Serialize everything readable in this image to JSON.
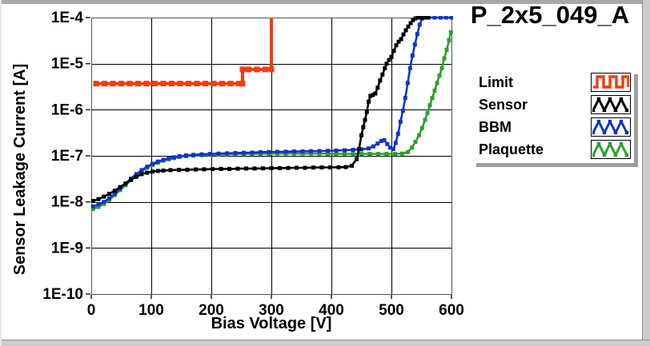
{
  "title": "P_2x5_049_A",
  "chart_data": {
    "type": "line",
    "title": "P_2x5_049_A",
    "xlabel": "Bias Voltage [V]",
    "ylabel": "Sensor Leakage Current [A]",
    "x_scale": "linear",
    "y_scale": "log",
    "xlim": [
      0,
      600
    ],
    "ylim": [
      1e-10,
      0.0001
    ],
    "grid": true,
    "legend_position": "right",
    "x_ticks": [
      0,
      100,
      200,
      300,
      400,
      500,
      600
    ],
    "x_tick_labels": [
      "0",
      "100",
      "200",
      "300",
      "400",
      "500",
      "600"
    ],
    "y_tick_labels": [
      "1E-4",
      "1E-5",
      "1E-6",
      "1E-7",
      "1E-8",
      "1E-9",
      "1E-10"
    ],
    "series": [
      {
        "name": "Limit",
        "color": "#f23c0e",
        "icon": "square-wave",
        "marker": "square",
        "marker_size": 7,
        "line_width": 4,
        "points": [
          [
            8,
            3.7e-06
          ],
          [
            22,
            3.7e-06
          ],
          [
            36,
            3.7e-06
          ],
          [
            50,
            3.7e-06
          ],
          [
            64,
            3.7e-06
          ],
          [
            78,
            3.7e-06
          ],
          [
            92,
            3.7e-06
          ],
          [
            106,
            3.7e-06
          ],
          [
            120,
            3.7e-06
          ],
          [
            134,
            3.7e-06
          ],
          [
            148,
            3.7e-06
          ],
          [
            162,
            3.7e-06
          ],
          [
            176,
            3.7e-06
          ],
          [
            190,
            3.7e-06
          ],
          [
            204,
            3.7e-06
          ],
          [
            218,
            3.7e-06
          ],
          [
            232,
            3.7e-06
          ],
          [
            246,
            3.7e-06
          ],
          [
            252,
            3.7e-06
          ],
          [
            252,
            7.5e-06
          ],
          [
            262,
            7.5e-06
          ],
          [
            276,
            7.5e-06
          ],
          [
            290,
            7.5e-06
          ],
          [
            300,
            7.5e-06
          ],
          [
            300,
            0.0001
          ]
        ]
      },
      {
        "name": "Sensor",
        "color": "#000000",
        "icon": "triangle-wave",
        "marker": "square",
        "marker_size": 5,
        "line_width": 2.6,
        "points": [
          [
            3,
            1.05e-08
          ],
          [
            12,
            1.15e-08
          ],
          [
            21,
            1.3e-08
          ],
          [
            30,
            1.5e-08
          ],
          [
            39,
            1.75e-08
          ],
          [
            48,
            2.1e-08
          ],
          [
            57,
            2.5e-08
          ],
          [
            66,
            3e-08
          ],
          [
            75,
            3.5e-08
          ],
          [
            84,
            4e-08
          ],
          [
            93,
            4.3e-08
          ],
          [
            102,
            4.55e-08
          ],
          [
            111,
            4.7e-08
          ],
          [
            120,
            4.8e-08
          ],
          [
            132,
            4.9e-08
          ],
          [
            146,
            4.95e-08
          ],
          [
            160,
            5e-08
          ],
          [
            174,
            5.05e-08
          ],
          [
            188,
            5.1e-08
          ],
          [
            202,
            5.15e-08
          ],
          [
            216,
            5.2e-08
          ],
          [
            230,
            5.2e-08
          ],
          [
            244,
            5.25e-08
          ],
          [
            258,
            5.3e-08
          ],
          [
            272,
            5.3e-08
          ],
          [
            286,
            5.35e-08
          ],
          [
            300,
            5.4e-08
          ],
          [
            314,
            5.4e-08
          ],
          [
            328,
            5.45e-08
          ],
          [
            342,
            5.5e-08
          ],
          [
            356,
            5.5e-08
          ],
          [
            370,
            5.55e-08
          ],
          [
            384,
            5.6e-08
          ],
          [
            398,
            5.6e-08
          ],
          [
            412,
            5.65e-08
          ],
          [
            424,
            5.7e-08
          ],
          [
            434,
            6.1e-08
          ],
          [
            442,
            8.5e-08
          ],
          [
            446,
            1.4e-07
          ],
          [
            450,
            2.8e-07
          ],
          [
            453,
            4.2e-07
          ],
          [
            456,
            6e-07
          ],
          [
            459,
            9e-07
          ],
          [
            462,
            1.5e-06
          ],
          [
            465,
            2e-06
          ],
          [
            469,
            2.1e-06
          ],
          [
            473,
            2.25e-06
          ],
          [
            477,
            3e-06
          ],
          [
            481,
            4.3e-06
          ],
          [
            485,
            5.8e-06
          ],
          [
            489,
            8e-06
          ],
          [
            492,
            1e-05
          ],
          [
            496,
            1.2e-05
          ],
          [
            500,
            1.4e-05
          ],
          [
            504,
            1.9e-05
          ],
          [
            508,
            2.5e-05
          ],
          [
            512,
            3e-05
          ],
          [
            516,
            3.4e-05
          ],
          [
            520,
            4.3e-05
          ],
          [
            524,
            5.3e-05
          ],
          [
            528,
            6.4e-05
          ],
          [
            532,
            7.6e-05
          ],
          [
            536,
            8.8e-05
          ],
          [
            540,
            9.6e-05
          ],
          [
            544,
            0.0001
          ],
          [
            550,
            0.0001
          ],
          [
            556,
            0.0001
          ],
          [
            561,
            0.0001
          ]
        ]
      },
      {
        "name": "BBM",
        "color": "#1433c8",
        "icon": "triangle-wave",
        "marker": "square",
        "marker_size": 5,
        "line_width": 2.6,
        "points": [
          [
            3,
            8e-09
          ],
          [
            12,
            8.8e-09
          ],
          [
            21,
            1e-08
          ],
          [
            30,
            1.2e-08
          ],
          [
            39,
            1.5e-08
          ],
          [
            48,
            1.95e-08
          ],
          [
            57,
            2.5e-08
          ],
          [
            66,
            3.2e-08
          ],
          [
            75,
            4e-08
          ],
          [
            84,
            4.9e-08
          ],
          [
            93,
            5.8e-08
          ],
          [
            102,
            6.7e-08
          ],
          [
            111,
            7.5e-08
          ],
          [
            120,
            8.2e-08
          ],
          [
            129,
            8.8e-08
          ],
          [
            138,
            9.3e-08
          ],
          [
            147,
            9.8e-08
          ],
          [
            158,
            1.02e-07
          ],
          [
            170,
            1.05e-07
          ],
          [
            184,
            1.08e-07
          ],
          [
            198,
            1.1e-07
          ],
          [
            212,
            1.12e-07
          ],
          [
            226,
            1.13e-07
          ],
          [
            240,
            1.15e-07
          ],
          [
            254,
            1.17e-07
          ],
          [
            268,
            1.18e-07
          ],
          [
            282,
            1.2e-07
          ],
          [
            296,
            1.21e-07
          ],
          [
            310,
            1.22e-07
          ],
          [
            324,
            1.23e-07
          ],
          [
            338,
            1.24e-07
          ],
          [
            352,
            1.25e-07
          ],
          [
            366,
            1.26e-07
          ],
          [
            380,
            1.27e-07
          ],
          [
            394,
            1.28e-07
          ],
          [
            408,
            1.3e-07
          ],
          [
            422,
            1.32e-07
          ],
          [
            436,
            1.35e-07
          ],
          [
            450,
            1.38e-07
          ],
          [
            462,
            1.45e-07
          ],
          [
            470,
            1.6e-07
          ],
          [
            477,
            1.85e-07
          ],
          [
            483,
            2.1e-07
          ],
          [
            488,
            2.2e-07
          ],
          [
            493,
            1.8e-07
          ],
          [
            498,
            1.5e-07
          ],
          [
            503,
            1.4e-07
          ],
          [
            507,
            1.9e-07
          ],
          [
            511,
            3e-07
          ],
          [
            515,
            5.5e-07
          ],
          [
            519,
            9.5e-07
          ],
          [
            523,
            1.8e-06
          ],
          [
            527,
            3.8e-06
          ],
          [
            531,
            8e-06
          ],
          [
            535,
            1.5e-05
          ],
          [
            539,
            2.6e-05
          ],
          [
            543,
            4.4e-05
          ],
          [
            547,
            7e-05
          ],
          [
            551,
            9.5e-05
          ],
          [
            554,
            0.0001
          ],
          [
            562,
            0.0001
          ],
          [
            572,
            0.0001
          ],
          [
            582,
            0.0001
          ],
          [
            591,
            0.0001
          ],
          [
            600,
            0.0001
          ]
        ]
      },
      {
        "name": "Plaquette",
        "color": "#2f9e2e",
        "icon": "triangle-wave",
        "marker": "square",
        "marker_size": 5,
        "line_width": 2.6,
        "points": [
          [
            3,
            7e-09
          ],
          [
            12,
            7.8e-09
          ],
          [
            21,
            9e-09
          ],
          [
            30,
            1.1e-08
          ],
          [
            39,
            1.4e-08
          ],
          [
            48,
            1.8e-08
          ],
          [
            57,
            2.3e-08
          ],
          [
            66,
            3e-08
          ],
          [
            75,
            3.8e-08
          ],
          [
            84,
            4.6e-08
          ],
          [
            93,
            5.5e-08
          ],
          [
            102,
            6.3e-08
          ],
          [
            111,
            7.1e-08
          ],
          [
            120,
            7.8e-08
          ],
          [
            129,
            8.4e-08
          ],
          [
            138,
            8.9e-08
          ],
          [
            147,
            9.4e-08
          ],
          [
            158,
            9.8e-08
          ],
          [
            170,
            1.01e-07
          ],
          [
            184,
            1.03e-07
          ],
          [
            198,
            1.05e-07
          ],
          [
            212,
            1.06e-07
          ],
          [
            226,
            1.08e-07
          ],
          [
            240,
            1.09e-07
          ],
          [
            254,
            1.1e-07
          ],
          [
            268,
            1.1e-07
          ],
          [
            282,
            1.11e-07
          ],
          [
            296,
            1.11e-07
          ],
          [
            310,
            1.12e-07
          ],
          [
            324,
            1.12e-07
          ],
          [
            338,
            1.12e-07
          ],
          [
            352,
            1.12e-07
          ],
          [
            366,
            1.12e-07
          ],
          [
            380,
            1.12e-07
          ],
          [
            394,
            1.11e-07
          ],
          [
            408,
            1.11e-07
          ],
          [
            422,
            1.1e-07
          ],
          [
            436,
            1.1e-07
          ],
          [
            450,
            1.1e-07
          ],
          [
            464,
            1.1e-07
          ],
          [
            478,
            1.1e-07
          ],
          [
            492,
            1.1e-07
          ],
          [
            506,
            1.1e-07
          ],
          [
            518,
            1.12e-07
          ],
          [
            527,
            1.2e-07
          ],
          [
            534,
            1.5e-07
          ],
          [
            540,
            2e-07
          ],
          [
            546,
            2.8e-07
          ],
          [
            551,
            4e-07
          ],
          [
            556,
            6e-07
          ],
          [
            560,
            8.5e-07
          ],
          [
            564,
            1.25e-06
          ],
          [
            568,
            1.8e-06
          ],
          [
            572,
            2.6e-06
          ],
          [
            576,
            3.8e-06
          ],
          [
            580,
            5.5e-06
          ],
          [
            584,
            8e-06
          ],
          [
            588,
            1.3e-05
          ],
          [
            592,
            2e-05
          ],
          [
            596,
            3.2e-05
          ],
          [
            599,
            4.8e-05
          ]
        ]
      }
    ]
  }
}
